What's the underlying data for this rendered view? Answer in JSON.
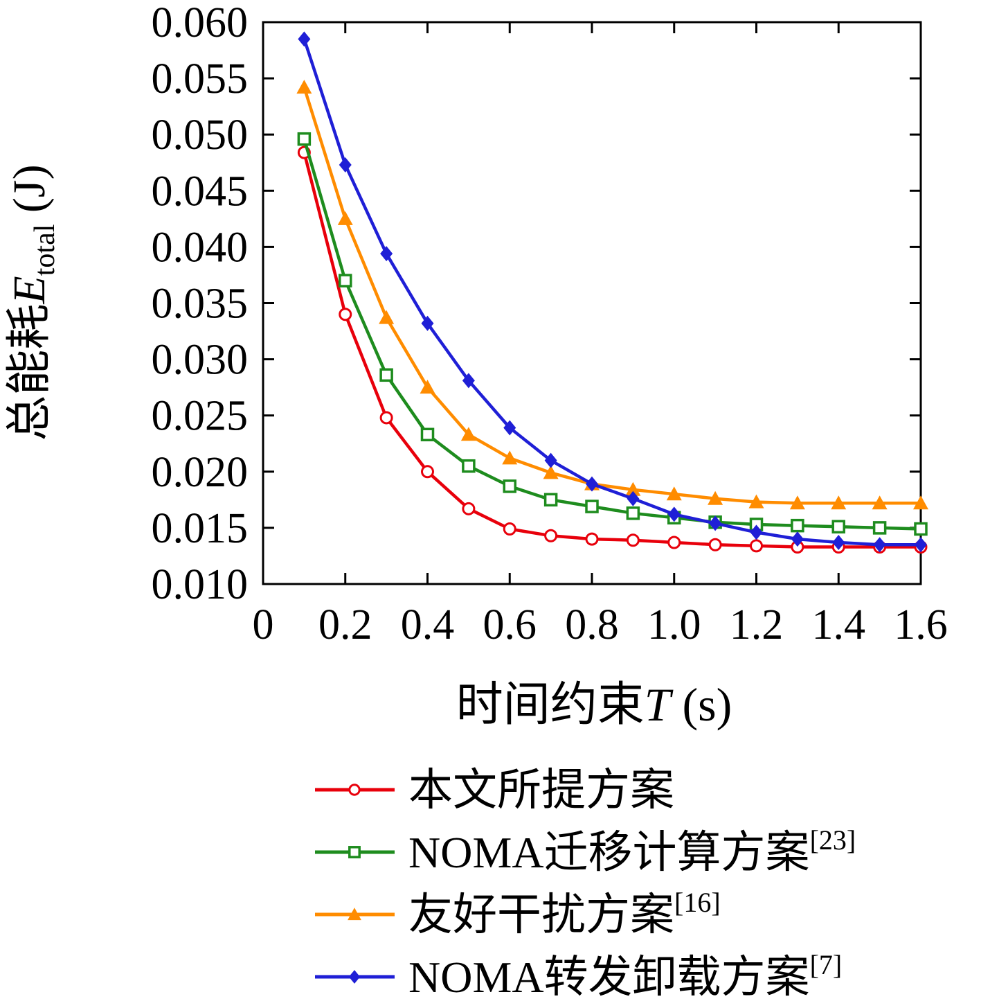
{
  "chart_data": {
    "type": "line",
    "title": "",
    "x": [
      0.1,
      0.2,
      0.3,
      0.4,
      0.5,
      0.6,
      0.7,
      0.8,
      0.9,
      1.0,
      1.1,
      1.2,
      1.3,
      1.4,
      1.5,
      1.6
    ],
    "series": [
      {
        "name": "本文所提方案",
        "ref": "",
        "color": "#e8000b",
        "marker": "circle-open",
        "values": [
          0.0484,
          0.034,
          0.0248,
          0.02,
          0.0167,
          0.0149,
          0.0143,
          0.014,
          0.0139,
          0.0137,
          0.0135,
          0.0134,
          0.0133,
          0.0133,
          0.0133,
          0.0133
        ]
      },
      {
        "name": "NOMA迁移计算方案",
        "ref": "[23]",
        "color": "#1e8c1e",
        "marker": "square-open",
        "values": [
          0.0496,
          0.037,
          0.0286,
          0.0233,
          0.0205,
          0.0187,
          0.0175,
          0.0169,
          0.0163,
          0.0159,
          0.0155,
          0.0153,
          0.0152,
          0.0151,
          0.015,
          0.0149
        ]
      },
      {
        "name": "友好干扰方案",
        "ref": "[16]",
        "color": "#ff8c00",
        "marker": "triangle",
        "values": [
          0.0542,
          0.0425,
          0.0337,
          0.0275,
          0.0233,
          0.0212,
          0.0199,
          0.0189,
          0.0184,
          0.018,
          0.0176,
          0.0173,
          0.0172,
          0.0172,
          0.0172,
          0.0172
        ]
      },
      {
        "name": "NOMA转发卸载方案",
        "ref": "[7]",
        "color": "#1f1fd6",
        "marker": "diamond",
        "values": [
          0.0585,
          0.0473,
          0.0394,
          0.0332,
          0.0281,
          0.0239,
          0.021,
          0.0189,
          0.0176,
          0.0162,
          0.0154,
          0.0146,
          0.014,
          0.0137,
          0.0135,
          0.0135
        ]
      }
    ],
    "xlabel": {
      "text": "时间约束",
      "var": "T",
      "unit": " (s)"
    },
    "ylabel": {
      "text": "总能耗",
      "var": "E",
      "sub": "total",
      "unit": " (J)"
    },
    "xlim": [
      0,
      1.6
    ],
    "ylim": [
      0.01,
      0.06
    ],
    "xticks": [
      0,
      0.2,
      0.4,
      0.6,
      0.8,
      1.0,
      1.2,
      1.4,
      1.6
    ],
    "yticks": [
      0.01,
      0.015,
      0.02,
      0.025,
      0.03,
      0.035,
      0.04,
      0.045,
      0.05,
      0.055,
      0.06
    ],
    "grid": false,
    "legend_position": "below-left",
    "axis_color": "#000000"
  }
}
